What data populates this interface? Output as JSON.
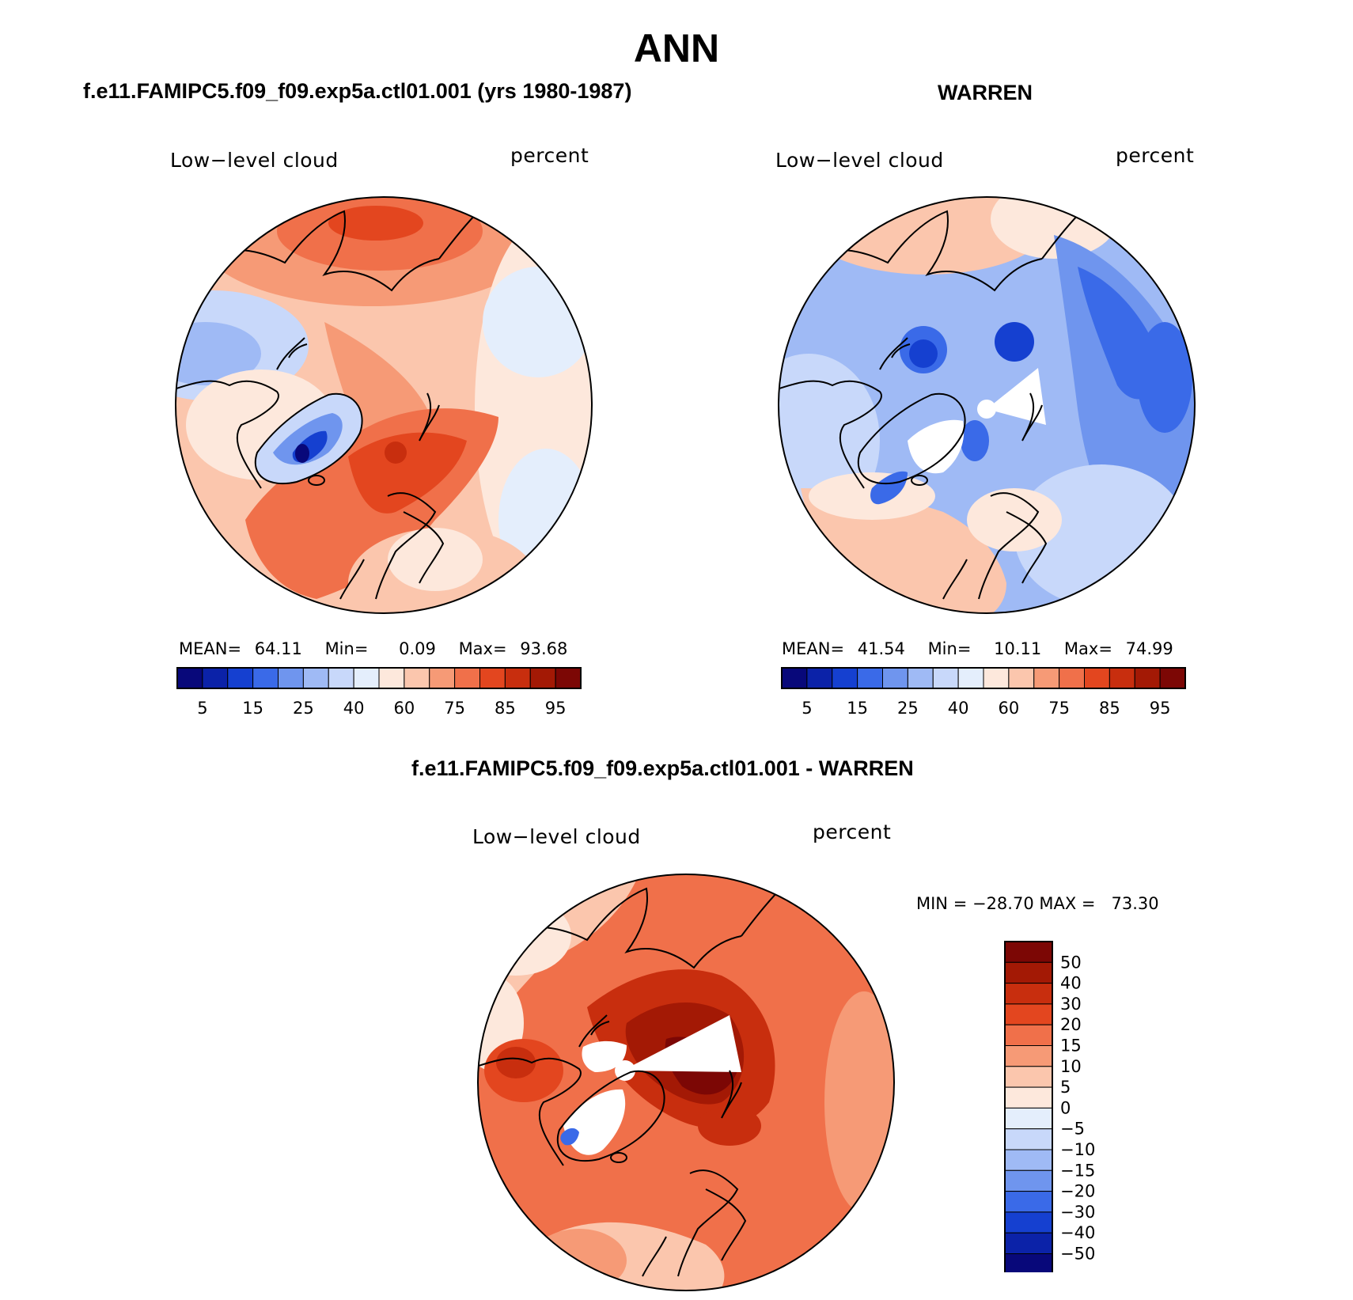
{
  "page": {
    "title": "ANN"
  },
  "panels": {
    "left": {
      "case_title": "f.e11.FAMIPC5.f09_f09.exp5a.ctl01.001 (yrs 1980-1987)",
      "variable": "Low−level cloud",
      "units": "percent",
      "stats": {
        "mean_label": "MEAN=",
        "mean": "64.11",
        "min_label": "Min=",
        "min": "0.09",
        "max_label": "Max=",
        "max": "93.68"
      },
      "colorbar": {
        "levels": [
          "5",
          "15",
          "25",
          "40",
          "60",
          "75",
          "85",
          "95"
        ],
        "colors": [
          "#08087a",
          "#0b22a8",
          "#1540d0",
          "#3a6ae8",
          "#6f95ee",
          "#9fbaf5",
          "#c8d8fa",
          "#e4eefc",
          "#fde8dc",
          "#fbc6ad",
          "#f69a76",
          "#f0704a",
          "#e3461f",
          "#c82e0e",
          "#a31905",
          "#7c0705"
        ]
      }
    },
    "right": {
      "case_title": "WARREN",
      "variable": "Low−level cloud",
      "units": "percent",
      "stats": {
        "mean_label": "MEAN=",
        "mean": "41.54",
        "min_label": "Min=",
        "min": "10.11",
        "max_label": "Max=",
        "max": "74.99"
      },
      "colorbar": {
        "levels": [
          "5",
          "15",
          "25",
          "40",
          "60",
          "75",
          "85",
          "95"
        ],
        "colors": [
          "#08087a",
          "#0b22a8",
          "#1540d0",
          "#3a6ae8",
          "#6f95ee",
          "#9fbaf5",
          "#c8d8fa",
          "#e4eefc",
          "#fde8dc",
          "#fbc6ad",
          "#f69a76",
          "#f0704a",
          "#e3461f",
          "#c82e0e",
          "#a31905",
          "#7c0705"
        ]
      }
    },
    "diff": {
      "case_title": "f.e11.FAMIPC5.f09_f09.exp5a.ctl01.001 - WARREN",
      "variable": "Low−level cloud",
      "units": "percent",
      "stats_text": "MIN = −28.70 MAX =   73.30",
      "colorbar": {
        "levels": [
          "50",
          "40",
          "30",
          "20",
          "15",
          "10",
          "5",
          "0",
          "−5",
          "−10",
          "−15",
          "−20",
          "−30",
          "−40",
          "−50"
        ],
        "colors": [
          "#7c0705",
          "#a31905",
          "#c82e0e",
          "#e3461f",
          "#f0704a",
          "#f69a76",
          "#fbc6ad",
          "#fde8dc",
          "#e4eefc",
          "#c8d8fa",
          "#9fbaf5",
          "#6f95ee",
          "#3a6ae8",
          "#1540d0",
          "#0b22a8",
          "#08087a"
        ]
      }
    }
  },
  "chart_data": [
    {
      "type": "heatmap",
      "title": "f.e11.FAMIPC5.f09_f09.exp5a.ctl01.001 (yrs 1980-1987)",
      "field": "Low-level cloud",
      "units": "percent",
      "projection": "north polar stereographic",
      "mean": 64.11,
      "min": 0.09,
      "max": 93.68,
      "contour_levels": [
        5,
        10,
        15,
        20,
        25,
        30,
        40,
        50,
        60,
        65,
        70,
        75,
        80,
        85,
        90,
        95
      ]
    },
    {
      "type": "heatmap",
      "title": "WARREN",
      "field": "Low-level cloud",
      "units": "percent",
      "projection": "north polar stereographic",
      "mean": 41.54,
      "min": 10.11,
      "max": 74.99,
      "contour_levels": [
        5,
        10,
        15,
        20,
        25,
        30,
        40,
        50,
        60,
        65,
        70,
        75,
        80,
        85,
        90,
        95
      ]
    },
    {
      "type": "heatmap",
      "title": "f.e11.FAMIPC5.f09_f09.exp5a.ctl01.001 - WARREN",
      "field": "Low-level cloud",
      "units": "percent",
      "projection": "north polar stereographic",
      "min": -28.7,
      "max": 73.3,
      "contour_levels": [
        -50,
        -40,
        -30,
        -20,
        -15,
        -10,
        -5,
        0,
        5,
        10,
        15,
        20,
        30,
        40,
        50
      ]
    }
  ]
}
